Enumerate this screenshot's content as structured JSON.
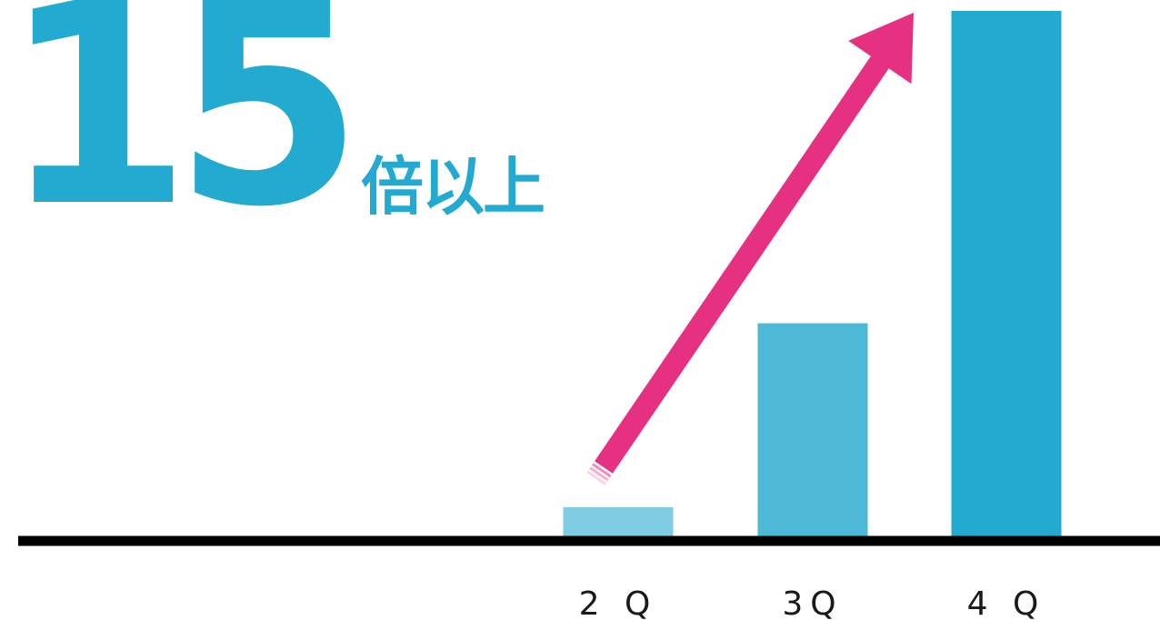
{
  "headline": {
    "number": "15",
    "suffix": "倍以上"
  },
  "colors": {
    "accent": "#23aad0",
    "arrow": "#e63082",
    "axis": "#000000"
  },
  "chart_data": {
    "type": "bar",
    "categories": [
      "2Q",
      "3Q",
      "4Q"
    ],
    "tick_labels": [
      "2 Q",
      "3Q",
      "4 Q"
    ],
    "values": [
      1,
      7.3,
      18
    ],
    "bar_colors": [
      "#7ecde3",
      "#4db9d6",
      "#23aad0"
    ],
    "title": "",
    "xlabel": "",
    "ylabel": "",
    "ylim": [
      0,
      18
    ],
    "grid": false,
    "annotations": [
      {
        "type": "arrow",
        "from": "2Q",
        "to": "4Q",
        "color": "#e63082"
      }
    ]
  }
}
